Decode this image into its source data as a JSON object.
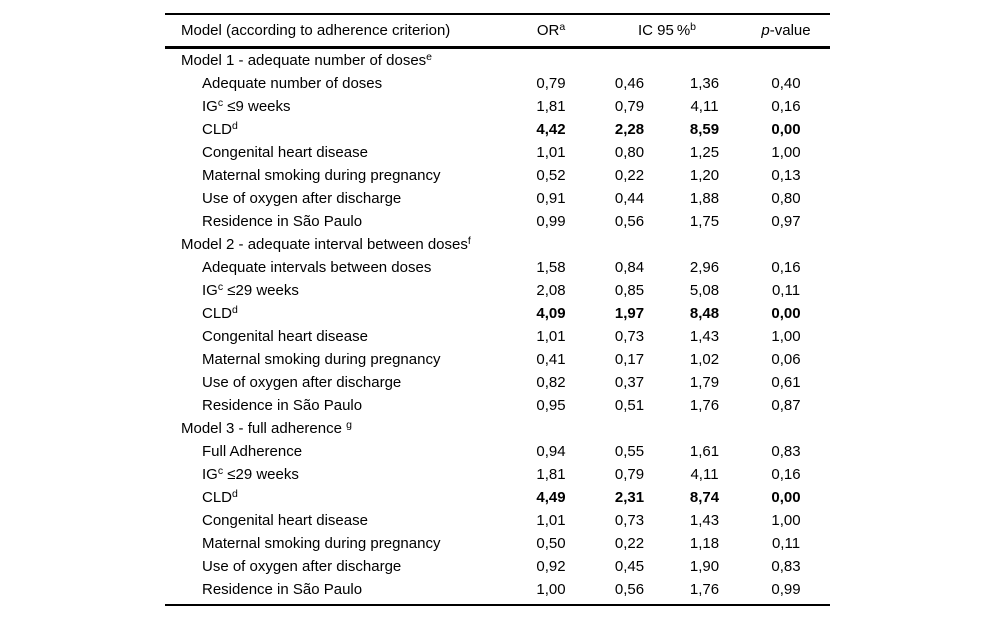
{
  "page": {
    "background": "#ffffff",
    "text_color": "#000000"
  },
  "table": {
    "header": {
      "model_label": "Model (according to adherence criterion)",
      "or_label": "OR",
      "or_sup": "a",
      "ic_label": "IC 95 %",
      "ic_sup": "b",
      "p_italic": "p",
      "p_rest": "-value"
    },
    "sections": [
      {
        "title": {
          "pre": "Model 1 - adequate number of doses",
          "sup": "e"
        },
        "rows": [
          {
            "pre": "Adequate number of doses",
            "sup": "",
            "post": "",
            "or": "0,79",
            "low": "0,46",
            "high": "1,36",
            "p": "0,40",
            "bold": false
          },
          {
            "pre": "IG",
            "sup": "c",
            "post": " ≤9 weeks",
            "or": "1,81",
            "low": "0,79",
            "high": "4,11",
            "p": "0,16",
            "bold": false
          },
          {
            "pre": "CLD",
            "sup": "d",
            "post": "",
            "or": "4,42",
            "low": "2,28",
            "high": "8,59",
            "p": "0,00",
            "bold": true
          },
          {
            "pre": "Congenital heart disease",
            "sup": "",
            "post": "",
            "or": "1,01",
            "low": "0,80",
            "high": "1,25",
            "p": "1,00",
            "bold": false
          },
          {
            "pre": "Maternal smoking during pregnancy",
            "sup": "",
            "post": "",
            "or": "0,52",
            "low": "0,22",
            "high": "1,20",
            "p": "0,13",
            "bold": false
          },
          {
            "pre": "Use of oxygen after discharge",
            "sup": "",
            "post": "",
            "or": "0,91",
            "low": "0,44",
            "high": "1,88",
            "p": "0,80",
            "bold": false
          },
          {
            "pre": "Residence in São Paulo",
            "sup": "",
            "post": "",
            "or": "0,99",
            "low": "0,56",
            "high": "1,75",
            "p": "0,97",
            "bold": false
          }
        ]
      },
      {
        "title": {
          "pre": "Model 2 - adequate interval between doses",
          "sup": "f"
        },
        "rows": [
          {
            "pre": "Adequate intervals between doses",
            "sup": "",
            "post": "",
            "or": "1,58",
            "low": "0,84",
            "high": "2,96",
            "p": "0,16",
            "bold": false
          },
          {
            "pre": "IG",
            "sup": "c",
            "post": " ≤29 weeks",
            "or": "2,08",
            "low": "0,85",
            "high": "5,08",
            "p": "0,11",
            "bold": false
          },
          {
            "pre": "CLD",
            "sup": "d",
            "post": "",
            "or": "4,09",
            "low": "1,97",
            "high": "8,48",
            "p": "0,00",
            "bold": true
          },
          {
            "pre": "Congenital heart disease",
            "sup": "",
            "post": "",
            "or": "1,01",
            "low": "0,73",
            "high": "1,43",
            "p": "1,00",
            "bold": false
          },
          {
            "pre": "Maternal smoking during pregnancy",
            "sup": "",
            "post": "",
            "or": "0,41",
            "low": "0,17",
            "high": "1,02",
            "p": "0,06",
            "bold": false
          },
          {
            "pre": "Use of oxygen after discharge",
            "sup": "",
            "post": "",
            "or": "0,82",
            "low": "0,37",
            "high": "1,79",
            "p": "0,61",
            "bold": false
          },
          {
            "pre": "Residence in São Paulo",
            "sup": "",
            "post": "",
            "or": "0,95",
            "low": "0,51",
            "high": "1,76",
            "p": "0,87",
            "bold": false
          }
        ]
      },
      {
        "title": {
          "pre": "Model 3 - full adherence ",
          "sup": "g"
        },
        "rows": [
          {
            "pre": "Full Adherence",
            "sup": "",
            "post": "",
            "or": "0,94",
            "low": "0,55",
            "high": "1,61",
            "p": "0,83",
            "bold": false
          },
          {
            "pre": "IG",
            "sup": "c",
            "post": " ≤29 weeks",
            "or": "1,81",
            "low": "0,79",
            "high": "4,11",
            "p": "0,16",
            "bold": false
          },
          {
            "pre": "CLD",
            "sup": "d",
            "post": "",
            "or": "4,49",
            "low": "2,31",
            "high": "8,74",
            "p": "0,00",
            "bold": true
          },
          {
            "pre": "Congenital heart disease",
            "sup": "",
            "post": "",
            "or": "1,01",
            "low": "0,73",
            "high": "1,43",
            "p": "1,00",
            "bold": false
          },
          {
            "pre": "Maternal smoking during pregnancy",
            "sup": "",
            "post": "",
            "or": "0,50",
            "low": "0,22",
            "high": "1,18",
            "p": "0,11",
            "bold": false
          },
          {
            "pre": "Use of oxygen after discharge",
            "sup": "",
            "post": "",
            "or": "0,92",
            "low": "0,45",
            "high": "1,90",
            "p": "0,83",
            "bold": false
          },
          {
            "pre": "Residence in São Paulo",
            "sup": "",
            "post": "",
            "or": "1,00",
            "low": "0,56",
            "high": "1,76",
            "p": "0,99",
            "bold": false
          }
        ]
      }
    ]
  }
}
